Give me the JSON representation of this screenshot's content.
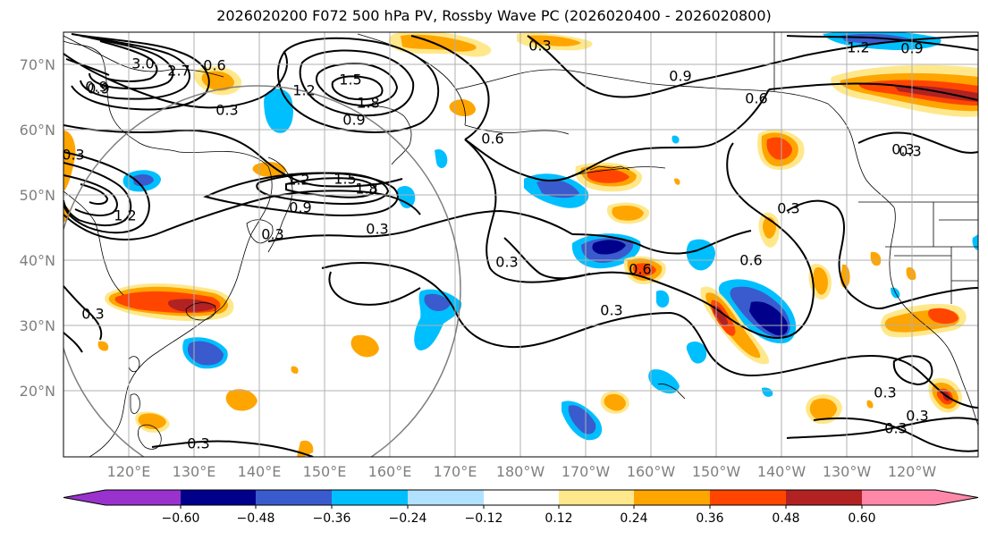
{
  "title": "2026020200 F072 500 hPa PV, Rossby Wave PC (2026020400 - 2026020800)",
  "latitude_labels": [
    "70°N",
    "60°N",
    "50°N",
    "40°N",
    "30°N",
    "20°N"
  ],
  "longitude_labels": [
    "120°E",
    "130°E",
    "140°E",
    "150°E",
    "160°E",
    "170°E",
    "180°W",
    "170°W",
    "160°W",
    "150°W",
    "140°W",
    "130°W",
    "120°W"
  ],
  "colorbar": {
    "ticks": [
      "−0.60",
      "−0.48",
      "−0.36",
      "−0.24",
      "−0.12",
      "0.12",
      "0.24",
      "0.36",
      "0.48",
      "0.60"
    ],
    "colors": [
      "#9932cc",
      "#00008b",
      "#3a5bcd",
      "#00bfff",
      "#b0e2ff",
      "#ffffff",
      "#ffe88c",
      "#ffa500",
      "#ff4500",
      "#b22222",
      "#ff88aa"
    ]
  },
  "contour_labels": [
    {
      "text": "0.3"
    },
    {
      "text": "0.9"
    },
    {
      "text": "1.2"
    },
    {
      "text": "0.9"
    },
    {
      "text": "0.9"
    },
    {
      "text": "0.6"
    },
    {
      "text": "1.5"
    },
    {
      "text": "1.2"
    },
    {
      "text": "1.8"
    },
    {
      "text": "0.9"
    },
    {
      "text": "3.0"
    },
    {
      "text": "2.7"
    },
    {
      "text": "0.6"
    },
    {
      "text": "0.9"
    },
    {
      "text": "0.3"
    },
    {
      "text": "1.2"
    },
    {
      "text": "1.5"
    },
    {
      "text": "1.8"
    },
    {
      "text": "0.9"
    },
    {
      "text": "0.3"
    },
    {
      "text": "0.3"
    },
    {
      "text": "0.3"
    },
    {
      "text": "0.6"
    },
    {
      "text": "0.6"
    },
    {
      "text": "0.3"
    },
    {
      "text": "0.3"
    },
    {
      "text": "0.3"
    },
    {
      "text": "0.3"
    },
    {
      "text": "0.3"
    },
    {
      "text": "0.3"
    },
    {
      "text": "0.6"
    },
    {
      "text": "0.3"
    },
    {
      "text": "1.2"
    },
    {
      "text": "0.3"
    },
    {
      "text": "0.3"
    },
    {
      "text": "0.3"
    }
  ]
}
